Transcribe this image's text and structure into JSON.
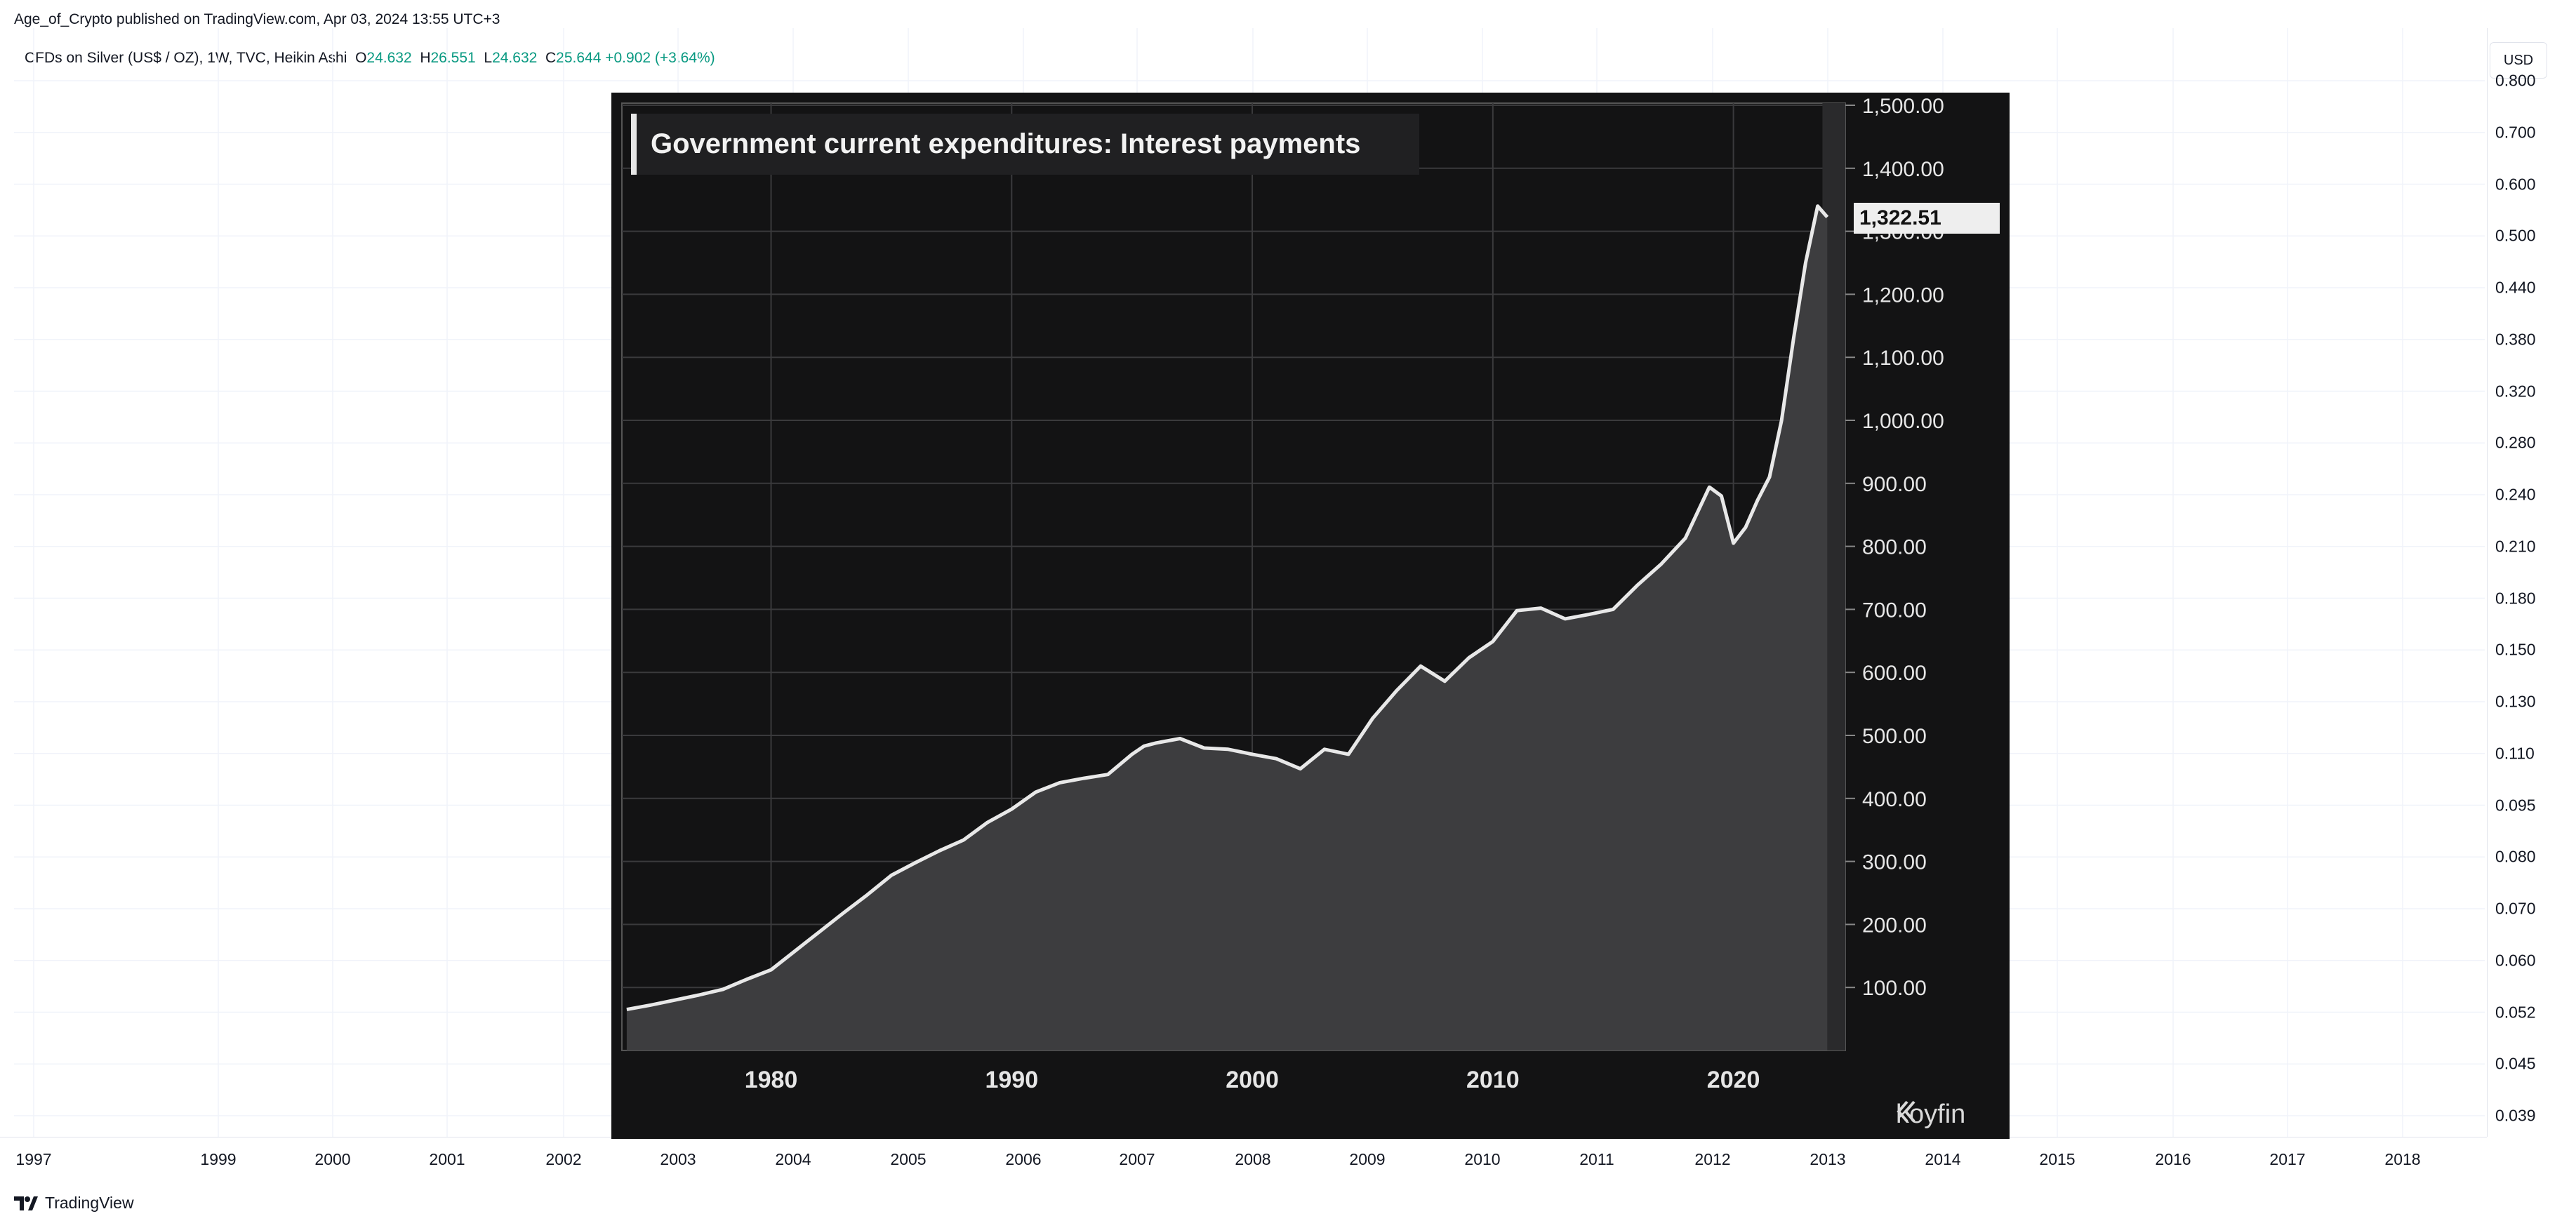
{
  "header": {
    "publisher_line": "Age_of_Crypto published on TradingView.com, Apr 03, 2024 13:55 UTC+3"
  },
  "legend": {
    "symbol": "CFDs on Silver (US$ / OZ), 1W, TVC, Heikin Ashi",
    "open_label": "O",
    "open": "24.632",
    "high_label": "H",
    "high": "26.551",
    "low_label": "L",
    "low": "24.632",
    "close_label": "C",
    "close": "25.644",
    "change": "+0.902 (+3.64%)",
    "up_color": "#089981"
  },
  "currency": "USD",
  "price_axis": {
    "ticks": [
      "0.800",
      "0.700",
      "0.600",
      "0.500",
      "0.440",
      "0.380",
      "0.320",
      "0.280",
      "0.240",
      "0.210",
      "0.180",
      "0.150",
      "0.130",
      "0.110",
      "0.095",
      "0.080",
      "0.070",
      "0.060",
      "0.052",
      "0.045",
      "0.039"
    ]
  },
  "time_axis": {
    "ticks": [
      "1997",
      "1999",
      "2000",
      "2001",
      "2002",
      "2003",
      "2004",
      "2005",
      "2006",
      "2007",
      "2008",
      "2009",
      "2010",
      "2011",
      "2012",
      "2013",
      "2014",
      "2015",
      "2016",
      "2017",
      "2018"
    ]
  },
  "footer": {
    "brand": "TradingView",
    "logo_icon": "tradingview-logo-icon"
  },
  "embedded_chart": {
    "brand": "koyfin",
    "brand_icon": "koyfin-logo-icon",
    "last_value_label": "1,322.51",
    "colors": {
      "background": "#131314",
      "line": "#e8e8e8",
      "area": "#3d3d3f",
      "grid": "#3a3a3c"
    }
  },
  "chart_data": {
    "type": "area",
    "title": "Government current expenditures: Interest payments",
    "xlabel": "",
    "ylabel": "",
    "xlim": [
      1973.8,
      2025
    ],
    "ylim": [
      0,
      1500
    ],
    "x_ticks": [
      1980,
      1990,
      2000,
      2010,
      2020
    ],
    "x_tick_labels": [
      "1980",
      "1990",
      "2000",
      "2010",
      "2020"
    ],
    "y_ticks": [
      100,
      200,
      300,
      400,
      500,
      600,
      700,
      800,
      900,
      1000,
      1100,
      1200,
      1300,
      1400,
      1500
    ],
    "y_tick_labels": [
      "100.00",
      "200.00",
      "300.00",
      "400.00",
      "500.00",
      "600.00",
      "700.00",
      "800.00",
      "900.00",
      "1,000.00",
      "1,100.00",
      "1,200.00",
      "1,300.00",
      "1,400.00",
      "1,500.00"
    ],
    "last_value": 1322.51,
    "grid": true,
    "series": [
      {
        "x": [
          1974,
          1975,
          1976,
          1977,
          1978,
          1979,
          1980,
          1981,
          1982,
          1983,
          1984,
          1985,
          1986,
          1987,
          1988,
          1989,
          1990,
          1991,
          1992,
          1993,
          1994,
          1995,
          1995.5,
          1996,
          1997,
          1998,
          1999,
          2000,
          2001,
          2002,
          2003,
          2004,
          2005,
          2006,
          2007,
          2008,
          2009,
          2010,
          2011,
          2012,
          2013,
          2014,
          2015,
          2016,
          2017,
          2018,
          2019,
          2019.5,
          2020,
          2020.5,
          2021,
          2021.5,
          2022,
          2022.5,
          2023,
          2023.5,
          2023.9
        ],
        "y": [
          65,
          72,
          80,
          88,
          97,
          113,
          128,
          158,
          188,
          218,
          247,
          278,
          298,
          317,
          334,
          362,
          383,
          410,
          425,
          432,
          438,
          470,
          483,
          488,
          495,
          480,
          478,
          470,
          463,
          447,
          478,
          470,
          527,
          571,
          610,
          586,
          623,
          649,
          698,
          702,
          685,
          692,
          700,
          738,
          772,
          813,
          894,
          880,
          805,
          830,
          873,
          910,
          1000,
          1130,
          1250,
          1340,
          1322.51
        ]
      }
    ]
  }
}
